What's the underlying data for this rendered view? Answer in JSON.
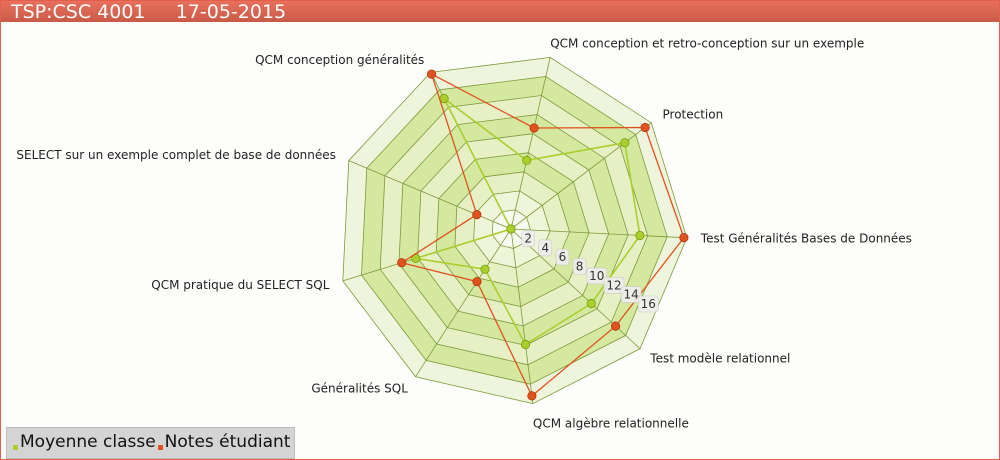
{
  "header": {
    "title": "TSP:CSC 4001",
    "date": "17-05-2015"
  },
  "chart_data": {
    "type": "radar",
    "axes": [
      "Test Généralités Bases de Données",
      "Test modèle relationnel",
      "QCM algèbre relationnelle",
      "Généralités SQL",
      "QCM pratique du SELECT SQL",
      "SELECT sur un exemple complet de base de données",
      "QCM conception généralités",
      "QCM conception et retro-conception sur un exemple",
      "Protection"
    ],
    "ticks": [
      2,
      4,
      6,
      8,
      10,
      12,
      14,
      16
    ],
    "range": [
      0,
      18
    ],
    "series": [
      {
        "name": "Moyenne classe",
        "color": "#a9cf2c",
        "values": [
          13.2,
          11.2,
          11.9,
          4.9,
          10.2,
          0,
          15,
          7.2,
          14.6
        ]
      },
      {
        "name": "Notes étudiant",
        "color": "#e0521e",
        "values": [
          17.7,
          14.6,
          17.2,
          6.4,
          11.7,
          3.8,
          17.8,
          10.6,
          17.2
        ]
      }
    ],
    "legend": "bottom-left"
  }
}
